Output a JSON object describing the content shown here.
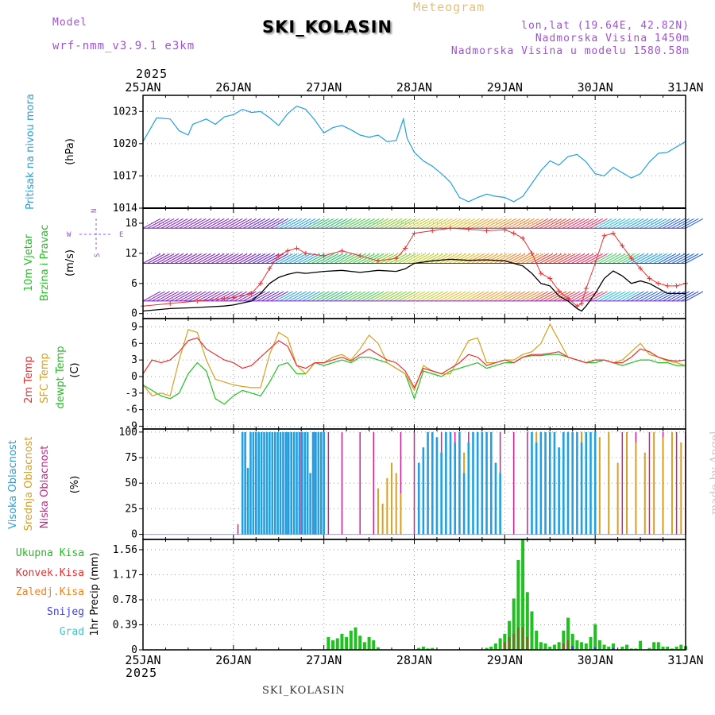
{
  "header": {
    "model_label": "Model",
    "model_name": "wrf-nmm_v3.9.1 e3km",
    "meteogram_label": "Meteogram",
    "station": "SKI_KOLASIN",
    "lonlat": "lon,lat (19.64E, 42.82N)",
    "elevation": "Nadmorska Visina 1450m",
    "model_elevation": "Nadmorska Visina u modelu 1580.58m",
    "year_top": "2025",
    "year_bottom": "2025",
    "footer_station": "SKI_KOLASIN",
    "credit": "made by Angel"
  },
  "colors": {
    "model": "#a050d8",
    "meteogram": "#e8c070",
    "pressure": "#20a0e0",
    "wind_speed": "#20c020",
    "wind_dir": "#20c020",
    "temp2m": "#e83030",
    "sfc_temp": "#d8a020",
    "dewpt": "#20c020",
    "cloud_high": "#20a0e0",
    "cloud_mid": "#d8a020",
    "cloud_low": "#d02090",
    "precip_total": "#20c020",
    "precip_conv": "#e83030",
    "precip_frozen": "#f08020",
    "snow": "#4040e0",
    "graupel": "#40c8c8"
  },
  "chart_data": {
    "type": "line",
    "time_axis": {
      "start_day": 25,
      "end_day": 31,
      "ticks": [
        "25JAN",
        "26JAN",
        "27JAN",
        "28JAN",
        "29JAN",
        "30JAN",
        "31JAN"
      ]
    },
    "pressure": {
      "ylabel_lines": [
        "Pritisak na nivou mora"
      ],
      "unit": "(hPa)",
      "ylim": [
        1014,
        1024.5
      ],
      "ticks": [
        "1014",
        "1017",
        "1020",
        "1023"
      ],
      "tick_values": [
        1014,
        1017,
        1020,
        1023
      ],
      "x": [
        25.0,
        25.15,
        25.3,
        25.4,
        25.5,
        25.55,
        25.7,
        25.8,
        25.9,
        26.0,
        26.1,
        26.2,
        26.3,
        26.4,
        26.5,
        26.6,
        26.7,
        26.8,
        26.9,
        27.0,
        27.1,
        27.2,
        27.3,
        27.4,
        27.5,
        27.6,
        27.7,
        27.8,
        27.88,
        27.92,
        28.0,
        28.1,
        28.2,
        28.3,
        28.4,
        28.5,
        28.6,
        28.7,
        28.8,
        28.9,
        29.0,
        29.1,
        29.2,
        29.3,
        29.4,
        29.5,
        29.6,
        29.7,
        29.8,
        29.9,
        30.0,
        30.1,
        30.2,
        30.3,
        30.4,
        30.5,
        30.6,
        30.7,
        30.8,
        30.9,
        31.0
      ],
      "values": [
        1020.2,
        1022.4,
        1022.3,
        1021.2,
        1020.8,
        1021.8,
        1022.3,
        1021.8,
        1022.5,
        1022.7,
        1023.2,
        1022.9,
        1023.0,
        1022.4,
        1021.7,
        1022.8,
        1023.5,
        1023.2,
        1022.2,
        1021.0,
        1021.5,
        1021.7,
        1021.3,
        1020.8,
        1020.6,
        1020.8,
        1020.2,
        1020.3,
        1022.3,
        1020.5,
        1019.2,
        1018.4,
        1017.9,
        1017.2,
        1016.4,
        1015.0,
        1014.6,
        1015.0,
        1015.3,
        1015.1,
        1015.0,
        1014.6,
        1015.1,
        1016.3,
        1017.5,
        1018.4,
        1018.0,
        1018.8,
        1019.0,
        1018.3,
        1017.2,
        1017.0,
        1017.8,
        1017.3,
        1016.8,
        1017.2,
        1018.3,
        1019.1,
        1019.2,
        1019.7,
        1020.2
      ]
    },
    "wind": {
      "ylabel_lines": [
        "10m Vjetar",
        "Brzina i Pravac"
      ],
      "unit": "(m/s)",
      "compass": [
        "N",
        "W",
        "E",
        "S"
      ],
      "ylim": [
        -1,
        21
      ],
      "ticks": [
        "0",
        "6",
        "12",
        "18"
      ],
      "tick_values": [
        0,
        6,
        12,
        18
      ],
      "x": [
        25.0,
        25.3,
        25.6,
        25.9,
        26.0,
        26.2,
        26.3,
        26.4,
        26.5,
        26.6,
        26.7,
        26.8,
        27.0,
        27.2,
        27.4,
        27.6,
        27.8,
        27.9,
        28.0,
        28.2,
        28.4,
        28.6,
        28.8,
        29.0,
        29.1,
        29.2,
        29.3,
        29.4,
        29.5,
        29.6,
        29.7,
        29.8,
        29.85,
        29.9,
        30.0,
        30.1,
        30.2,
        30.3,
        30.4,
        30.5,
        30.6,
        30.7,
        30.8,
        30.9,
        31.0
      ],
      "speed": [
        0.5,
        1.0,
        1.2,
        1.5,
        1.7,
        2.5,
        4.0,
        6.0,
        7.2,
        7.8,
        8.2,
        8.0,
        8.4,
        8.6,
        8.2,
        8.6,
        8.4,
        8.9,
        10.0,
        10.5,
        10.8,
        10.6,
        10.7,
        10.5,
        10.0,
        9.5,
        8.0,
        6.0,
        5.5,
        3.5,
        2.5,
        1.0,
        0.5,
        1.5,
        4.0,
        7.0,
        8.5,
        7.5,
        6.0,
        6.5,
        6.0,
        5.0,
        4.0,
        4.0,
        4.0
      ],
      "gust": [
        1.5,
        2.0,
        2.5,
        3.0,
        3.2,
        4.0,
        6.0,
        9.0,
        11.5,
        12.5,
        13.0,
        12.0,
        11.5,
        12.5,
        11.5,
        10.5,
        11.0,
        13.0,
        16.0,
        16.5,
        17.0,
        16.8,
        16.5,
        16.7,
        16.0,
        15.0,
        12.0,
        8.0,
        7.0,
        4.5,
        3.0,
        1.5,
        2.0,
        5.0,
        10.0,
        15.5,
        16.0,
        13.5,
        11.0,
        9.0,
        7.0,
        6.0,
        5.5,
        5.5,
        6.0
      ],
      "barb_rows": [
        {
          "level": 2.5,
          "colors": [
            "#8020c0",
            "#8020c0",
            "#8020c0",
            "#6020d0",
            "#20a0e0",
            "#20c060",
            "#40d040",
            "#80d020",
            "#c0d020",
            "#e0c020",
            "#f0a020",
            "#f08020",
            "#e84030",
            "#e83060",
            "#20c0e0",
            "#2060e0",
            "#2040e0"
          ]
        },
        {
          "level": 10,
          "colors": [
            "#8020c0",
            "#8020c0",
            "#8020c0",
            "#6020d0",
            "#20a0e0",
            "#20c060",
            "#40d040",
            "#80d020",
            "#c0d020",
            "#e0c020",
            "#f0a020",
            "#f08020",
            "#e84030",
            "#e83060",
            "#40d060",
            "#20a0e0",
            "#2060e0"
          ]
        },
        {
          "level": 17,
          "colors": [
            "#8020c0",
            "#8020c0",
            "#8020c0",
            "#6020d0",
            "#20a0e0",
            "#20c060",
            "#40d040",
            "#80d020",
            "#c0d020",
            "#e0c020",
            "#f0a020",
            "#f08020",
            "#e84030",
            "#e83060",
            "#20c0e0",
            "#20a0e0",
            "#2060e0"
          ]
        }
      ]
    },
    "temperature": {
      "ylabel_lines": [
        "2m Temp",
        "SFC Temp",
        "dewpt Temp"
      ],
      "unit": "(C)",
      "ylim": [
        -9.5,
        10.5
      ],
      "ticks": [
        "-9",
        "-6",
        "-3",
        "0",
        "3",
        "6",
        "9"
      ],
      "tick_values": [
        -9,
        -6,
        -3,
        0,
        3,
        6,
        9
      ],
      "x": [
        25.0,
        25.1,
        25.2,
        25.3,
        25.4,
        25.5,
        25.6,
        25.7,
        25.8,
        25.9,
        26.0,
        26.1,
        26.2,
        26.3,
        26.4,
        26.5,
        26.6,
        26.7,
        26.8,
        26.9,
        27.0,
        27.1,
        27.2,
        27.3,
        27.4,
        27.5,
        27.6,
        27.7,
        27.8,
        27.9,
        28.0,
        28.1,
        28.2,
        28.3,
        28.4,
        28.5,
        28.6,
        28.7,
        28.8,
        28.9,
        29.0,
        29.1,
        29.2,
        29.3,
        29.4,
        29.5,
        29.6,
        29.7,
        29.8,
        29.9,
        30.0,
        30.1,
        30.2,
        30.3,
        30.4,
        30.5,
        30.6,
        30.7,
        30.8,
        30.9,
        31.0
      ],
      "t2m": [
        0.5,
        3.0,
        2.5,
        3.0,
        4.5,
        6.5,
        7.0,
        5.0,
        4.0,
        3.0,
        2.5,
        1.5,
        2.0,
        3.5,
        5.0,
        6.5,
        5.5,
        2.0,
        1.5,
        2.5,
        2.5,
        3.0,
        3.5,
        2.8,
        4.0,
        5.0,
        4.0,
        3.0,
        2.5,
        1.0,
        -2.0,
        1.5,
        1.0,
        0.5,
        1.5,
        2.5,
        4.0,
        3.5,
        2.0,
        2.5,
        3.0,
        2.5,
        3.5,
        4.0,
        4.0,
        4.2,
        4.5,
        3.5,
        3.0,
        2.5,
        3.0,
        3.0,
        2.5,
        2.5,
        3.5,
        5.0,
        4.5,
        3.5,
        3.0,
        2.8,
        3.0
      ],
      "sfc": [
        -1.5,
        -3.5,
        -3.0,
        -3.5,
        3.0,
        8.5,
        8.0,
        3.0,
        -0.5,
        -1.0,
        -1.5,
        -1.8,
        -2.0,
        -2.0,
        4.0,
        8.0,
        7.0,
        2.0,
        0.5,
        2.5,
        2.5,
        3.5,
        4.0,
        3.0,
        5.0,
        7.5,
        6.0,
        2.5,
        1.5,
        0.5,
        -2.5,
        2.0,
        1.0,
        0.5,
        0.5,
        3.5,
        6.5,
        7.0,
        2.5,
        2.5,
        3.0,
        3.0,
        4.0,
        4.5,
        6.0,
        9.5,
        6.5,
        3.5,
        3.0,
        2.5,
        3.0,
        3.0,
        2.5,
        3.0,
        4.5,
        6.0,
        4.0,
        3.5,
        2.8,
        2.5,
        2.0
      ],
      "dewpt": [
        -1.5,
        -2.5,
        -3.5,
        -4.0,
        -3.0,
        0.5,
        2.5,
        1.0,
        -4.0,
        -5.0,
        -3.5,
        -2.5,
        -3.0,
        -3.5,
        -1.0,
        2.0,
        2.5,
        0.5,
        0.5,
        2.5,
        2.0,
        2.5,
        3.0,
        2.5,
        3.5,
        3.5,
        3.0,
        2.5,
        1.5,
        0.5,
        -4.0,
        1.0,
        0.5,
        0.0,
        1.0,
        1.5,
        2.0,
        2.5,
        1.5,
        2.0,
        2.5,
        2.5,
        3.5,
        3.8,
        3.8,
        4.0,
        4.0,
        3.5,
        3.0,
        2.5,
        2.5,
        3.0,
        2.5,
        2.0,
        2.5,
        3.0,
        3.0,
        2.5,
        2.5,
        2.0,
        2.0
      ]
    },
    "clouds": {
      "ylabel_lines": [
        "Visoka Oblacnost",
        "Srednja Oblacnost",
        "Niska Oblacnost"
      ],
      "unit": "(%)",
      "ylim": [
        -5,
        103
      ],
      "ticks": [
        "0",
        "25",
        "50",
        "75",
        "100"
      ],
      "tick_values": [
        0,
        25,
        50,
        75,
        100
      ],
      "high_x": [
        26.1,
        26.13,
        26.16,
        26.19,
        26.22,
        26.25,
        26.28,
        26.31,
        26.34,
        26.37,
        26.4,
        26.43,
        26.46,
        26.49,
        26.52,
        26.55,
        26.58,
        26.61,
        26.64,
        26.67,
        26.7,
        26.73,
        26.76,
        26.79,
        26.82,
        26.85,
        26.88,
        26.91,
        26.94,
        26.97,
        27.0,
        28.05,
        28.1,
        28.15,
        28.2,
        28.25,
        28.3,
        28.35,
        28.4,
        28.45,
        28.5,
        28.55,
        28.6,
        28.65,
        28.7,
        28.75,
        28.8,
        28.85,
        28.9,
        28.95,
        29.3,
        29.35,
        29.4,
        29.45,
        29.5,
        29.55,
        29.6,
        29.65,
        29.7,
        29.75,
        29.8,
        29.85,
        29.9,
        29.95,
        30.0
      ],
      "high_v": [
        100,
        100,
        65,
        100,
        100,
        100,
        100,
        100,
        100,
        100,
        100,
        100,
        100,
        100,
        100,
        100,
        100,
        100,
        100,
        100,
        100,
        100,
        100,
        100,
        100,
        60,
        100,
        100,
        100,
        100,
        100,
        70,
        85,
        100,
        100,
        95,
        80,
        100,
        100,
        90,
        100,
        60,
        90,
        100,
        100,
        100,
        100,
        100,
        70,
        60,
        100,
        90,
        100,
        100,
        100,
        100,
        85,
        100,
        100,
        100,
        100,
        90,
        100,
        100,
        100
      ],
      "mid_x": [
        27.6,
        27.65,
        27.7,
        27.75,
        27.8,
        27.85,
        28.55,
        28.65,
        28.75,
        28.85,
        29.35,
        29.45,
        29.55,
        29.65,
        29.75,
        29.85,
        29.95,
        30.05,
        30.15,
        30.25,
        30.35,
        30.45,
        30.55,
        30.65,
        30.75,
        30.85,
        30.95
      ],
      "mid_v": [
        45,
        30,
        55,
        70,
        60,
        40,
        80,
        65,
        75,
        60,
        100,
        90,
        80,
        100,
        75,
        100,
        85,
        95,
        100,
        70,
        100,
        90,
        80,
        100,
        95,
        100,
        90
      ],
      "low_x": [
        26.05,
        26.4,
        26.6,
        26.75,
        26.9,
        27.05,
        27.2,
        27.4,
        27.55,
        27.85,
        28.0,
        28.15,
        28.3,
        28.45,
        28.6,
        28.8,
        28.95,
        29.1,
        29.25,
        29.4,
        29.55,
        29.7,
        29.85,
        30.0,
        30.15,
        30.3,
        30.45,
        30.6,
        30.75,
        30.9,
        31.0
      ],
      "low_v": [
        10,
        100,
        100,
        100,
        100,
        100,
        100,
        100,
        100,
        100,
        100,
        100,
        100,
        100,
        100,
        100,
        100,
        100,
        100,
        100,
        100,
        100,
        100,
        100,
        100,
        100,
        100,
        100,
        100,
        100,
        100
      ]
    },
    "precip": {
      "ylabel_lines": [
        "1hr Precip (mm)"
      ],
      "legend": [
        "Ukupna Kisa",
        "Konvek.Kisa",
        "Zaledj.Kisa",
        "Snijeg",
        "Grad"
      ],
      "ylim": [
        0,
        1.72
      ],
      "ticks": [
        "0",
        "0.39",
        "0.78",
        "1.17",
        "1.56"
      ],
      "tick_values": [
        0,
        0.39,
        0.78,
        1.17,
        1.56
      ],
      "total_x": [
        27.05,
        27.1,
        27.15,
        27.2,
        27.25,
        27.3,
        27.35,
        27.4,
        27.45,
        27.5,
        27.55,
        27.6,
        28.05,
        28.1,
        28.15,
        28.2,
        28.8,
        28.85,
        28.9,
        28.95,
        29.0,
        29.05,
        29.1,
        29.15,
        29.2,
        29.25,
        29.3,
        29.35,
        29.4,
        29.45,
        29.5,
        29.55,
        29.6,
        29.65,
        29.7,
        29.75,
        29.8,
        29.85,
        29.9,
        29.95,
        30.0,
        30.05,
        30.1,
        30.15,
        30.2,
        30.3,
        30.35,
        30.4,
        30.45,
        30.5,
        30.6,
        30.65,
        30.7,
        30.75,
        30.8,
        30.85,
        30.9,
        30.95,
        31.0
      ],
      "total_v": [
        0.2,
        0.15,
        0.18,
        0.25,
        0.2,
        0.3,
        0.35,
        0.22,
        0.12,
        0.2,
        0.15,
        0.04,
        0.03,
        0.05,
        0.02,
        0.03,
        0.03,
        0.05,
        0.1,
        0.18,
        0.25,
        0.45,
        0.8,
        1.4,
        1.72,
        0.9,
        0.6,
        0.3,
        0.12,
        0.1,
        0.05,
        0.08,
        0.12,
        0.3,
        0.5,
        0.25,
        0.15,
        0.12,
        0.1,
        0.2,
        0.4,
        0.15,
        0.08,
        0.05,
        0.1,
        0.05,
        0.08,
        0.02,
        0.02,
        0.14,
        0.03,
        0.12,
        0.12,
        0.05,
        0.05,
        0.02,
        0.05,
        0.08,
        0.06
      ],
      "conv_x": [
        29.0,
        29.05,
        29.1,
        29.15,
        29.2,
        29.25,
        29.65,
        29.7
      ],
      "conv_v": [
        0.12,
        0.2,
        0.25,
        0.35,
        0.35,
        0.2,
        0.1,
        0.15
      ],
      "snow_x": [
        29.75,
        30.0,
        30.2
      ],
      "snow_v": [
        0.06,
        0.04,
        0.03
      ]
    }
  }
}
